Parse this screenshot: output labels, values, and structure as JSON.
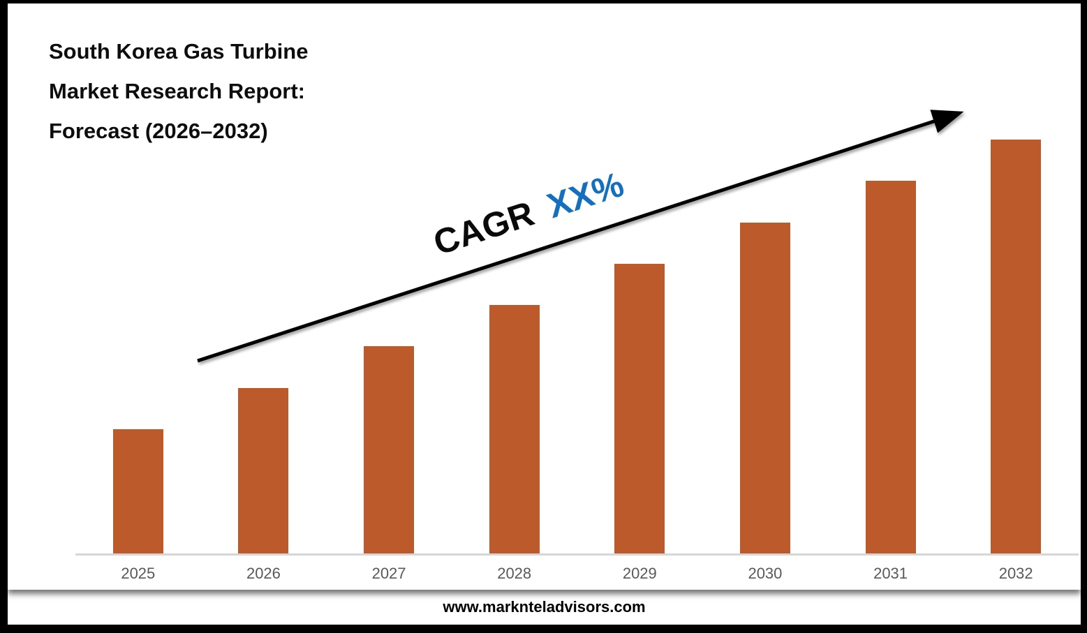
{
  "header": {
    "title_lines": [
      "South Korea Gas Turbine",
      "Market Research Report:",
      "Forecast (2026–2032)"
    ]
  },
  "annotation": {
    "label": "CAGR",
    "value": "XX%",
    "value_color": "#1470BE"
  },
  "footer": {
    "website": "www.marknteladvisors.com"
  },
  "chart_data": {
    "type": "bar",
    "title": "South Korea Gas Turbine Market Research Report: Forecast (2026–2032)",
    "categories": [
      "2025",
      "2026",
      "2027",
      "2028",
      "2029",
      "2030",
      "2031",
      "2032"
    ],
    "values": [
      3,
      4,
      5,
      6,
      7,
      8,
      9,
      10
    ],
    "value_note": "no y-axis labels shown; values are relative bar heights (equal increments year over year)",
    "bar_color": "#BC5A2B",
    "xlabel": "",
    "ylabel": "",
    "ylim": [
      0,
      11.3
    ],
    "grid": false,
    "legend_position": "none",
    "trend_annotation": "CAGR XX% with upward trend arrow from 2025 toward 2032"
  }
}
